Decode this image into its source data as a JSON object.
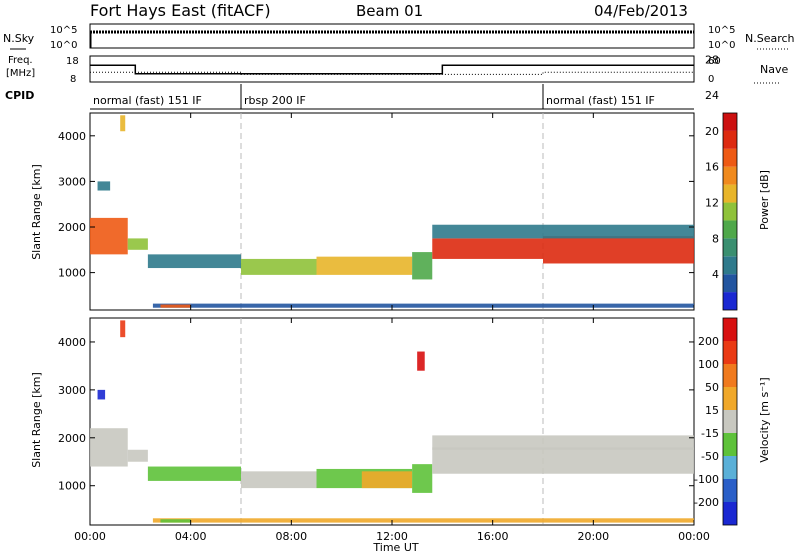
{
  "header": {
    "station": "Fort Hays East (fitACF)",
    "beam": "Beam 01",
    "date": "04/Feb/2013"
  },
  "status_panels": {
    "nsky_label": "N.Sky",
    "nsearch_label": "N.Search",
    "noise_ticks_left": [
      "10^5",
      "10^0"
    ],
    "noise_ticks_right": [
      "10^5",
      "10^0"
    ],
    "freq_label_line1": "Freq.",
    "freq_label_line2": "[MHz]",
    "freq_ticks": [
      "18",
      "8"
    ],
    "nave_label": "Nave",
    "nave_ticks": [
      "60",
      "0"
    ],
    "cpid_label": "CPID",
    "cpid_segments": [
      {
        "label": "normal (fast) 151 IF",
        "start_hour": 0
      },
      {
        "label": "rbsp 200 IF",
        "start_hour": 6
      },
      {
        "label": "normal (fast) 151 IF",
        "start_hour": 18
      }
    ],
    "freq_trace": [
      [
        0,
        15
      ],
      [
        1.8,
        15
      ],
      [
        1.8,
        11
      ],
      [
        14,
        11
      ],
      [
        14,
        15
      ],
      [
        24,
        15
      ]
    ],
    "nave_trace": [
      [
        0,
        22
      ],
      [
        6,
        22
      ],
      [
        6,
        16
      ],
      [
        18,
        16
      ],
      [
        18,
        22
      ],
      [
        24,
        22
      ]
    ]
  },
  "chart_data": [
    {
      "type": "heatmap",
      "name": "power",
      "ylabel": "Slant Range [km]",
      "yticks": [
        "1000",
        "2000",
        "3000",
        "4000"
      ],
      "ylim": [
        180,
        4500
      ],
      "xlim": [
        0,
        24
      ],
      "colorbar_label": "Power [dB]",
      "colorbar_ticks": [
        "4",
        "8",
        "12",
        "16",
        "20",
        "24",
        "28"
      ],
      "colorbar_colors": [
        "#1a28d2",
        "#2255a0",
        "#2f7a8c",
        "#3a8f70",
        "#4fa84a",
        "#8fc23a",
        "#e8b52a",
        "#f08a1e",
        "#ee5a14",
        "#dd2a10",
        "#cc1010"
      ],
      "bands": [
        {
          "x0": 0.0,
          "x1": 1.5,
          "y0": 1400,
          "y1": 2200,
          "level": 8
        },
        {
          "x0": 1.5,
          "x1": 2.3,
          "y0": 1500,
          "y1": 1750,
          "level": 5
        },
        {
          "x0": 2.3,
          "x1": 6.0,
          "y0": 1100,
          "y1": 1400,
          "level": 2
        },
        {
          "x0": 6.0,
          "x1": 9.0,
          "y0": 950,
          "y1": 1300,
          "level": 5
        },
        {
          "x0": 9.0,
          "x1": 12.8,
          "y0": 950,
          "y1": 1350,
          "level": 6
        },
        {
          "x0": 12.8,
          "x1": 13.6,
          "y0": 850,
          "y1": 1450,
          "level": 4
        },
        {
          "x0": 13.6,
          "x1": 18.0,
          "y0": 1300,
          "y1": 1750,
          "level": 9
        },
        {
          "x0": 18.0,
          "x1": 24.0,
          "y0": 1200,
          "y1": 1800,
          "level": 9
        },
        {
          "x0": 13.6,
          "x1": 24.0,
          "y0": 1750,
          "y1": 2050,
          "level": 2
        },
        {
          "x0": 2.5,
          "x1": 24.0,
          "y0": 230,
          "y1": 320,
          "level": 1
        },
        {
          "x0": 2.8,
          "x1": 4.0,
          "y0": 230,
          "y1": 300,
          "level": 8
        },
        {
          "x0": 0.3,
          "x1": 0.8,
          "y0": 2800,
          "y1": 3000,
          "level": 2
        },
        {
          "x0": 1.2,
          "x1": 1.4,
          "y0": 4100,
          "y1": 4450,
          "level": 6
        }
      ]
    },
    {
      "type": "heatmap",
      "name": "velocity",
      "ylabel": "Slant Range [km]",
      "yticks": [
        "1000",
        "2000",
        "3000",
        "4000"
      ],
      "ylim": [
        180,
        4500
      ],
      "xlim": [
        0,
        24
      ],
      "xlabel": "Time UT",
      "xticks": [
        "00:00",
        "04:00",
        "08:00",
        "12:00",
        "16:00",
        "20:00",
        "00:00"
      ],
      "colorbar_label": "Velocity [m s⁻¹]",
      "colorbar_ticks": [
        "200",
        "100",
        "50",
        "15",
        "-15",
        "-50",
        "-100",
        "-200"
      ],
      "colorbar_colors": [
        "#1a28d2",
        "#2a5fc8",
        "#5ab0d8",
        "#5ec23a",
        "#c8c8c0",
        "#f0a82a",
        "#f07a1e",
        "#ea3a14",
        "#d81010"
      ],
      "bands": [
        {
          "x0": 0.0,
          "x1": 1.5,
          "y0": 1400,
          "y1": 2200,
          "level": 4
        },
        {
          "x0": 1.5,
          "x1": 2.3,
          "y0": 1500,
          "y1": 1750,
          "level": 4
        },
        {
          "x0": 2.3,
          "x1": 6.0,
          "y0": 1100,
          "y1": 1400,
          "level": 3
        },
        {
          "x0": 6.0,
          "x1": 9.0,
          "y0": 950,
          "y1": 1300,
          "level": 4
        },
        {
          "x0": 9.0,
          "x1": 12.8,
          "y0": 950,
          "y1": 1350,
          "level": 3
        },
        {
          "x0": 10.8,
          "x1": 12.8,
          "y0": 950,
          "y1": 1300,
          "level": 5
        },
        {
          "x0": 12.8,
          "x1": 13.6,
          "y0": 850,
          "y1": 1450,
          "level": 3
        },
        {
          "x0": 13.6,
          "x1": 24.0,
          "y0": 1250,
          "y1": 1800,
          "level": 4
        },
        {
          "x0": 13.6,
          "x1": 24.0,
          "y0": 1750,
          "y1": 2050,
          "level": 4
        },
        {
          "x0": 2.5,
          "x1": 24.0,
          "y0": 230,
          "y1": 320,
          "level": 5
        },
        {
          "x0": 2.8,
          "x1": 4.0,
          "y0": 230,
          "y1": 300,
          "level": 3
        },
        {
          "x0": 0.3,
          "x1": 0.6,
          "y0": 2800,
          "y1": 3000,
          "level": 0
        },
        {
          "x0": 1.2,
          "x1": 1.4,
          "y0": 4100,
          "y1": 4450,
          "level": 7
        },
        {
          "x0": 13.0,
          "x1": 13.3,
          "y0": 3400,
          "y1": 3800,
          "level": 8
        }
      ]
    }
  ]
}
